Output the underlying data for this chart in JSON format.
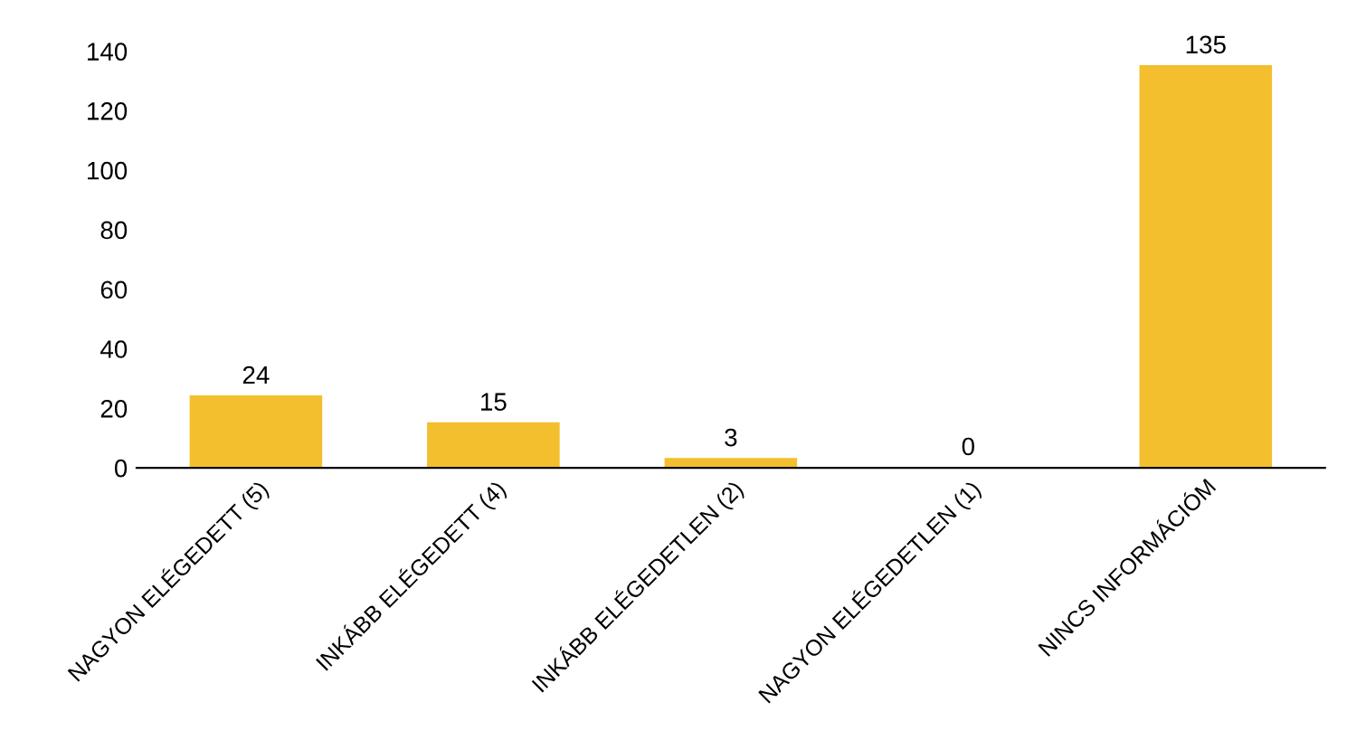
{
  "chart_data": {
    "type": "bar",
    "categories": [
      "NAGYON ELÉGEDETT (5)",
      "INKÁBB ELÉGEDETT (4)",
      "INKÁBB ELÉGEDETLEN (2)",
      "NAGYON ELÉGEDETLEN (1)",
      "NINCS INFORMÁCIÓM"
    ],
    "values": [
      24,
      15,
      3,
      0,
      135
    ],
    "color": "#f4bf2e",
    "ylim": [
      0,
      140
    ],
    "yticks": [
      0,
      20,
      40,
      60,
      80,
      100,
      120,
      140
    ],
    "data_labels": true,
    "grid": false,
    "legend": false
  }
}
